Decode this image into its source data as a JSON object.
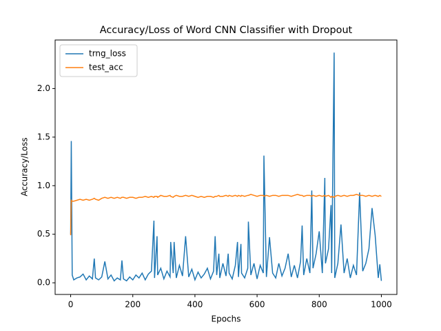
{
  "chart_data": {
    "type": "line",
    "title": "Accuracy/Loss of Word CNN Classifier with Dropout",
    "x_label": "Epochs",
    "y_label": "Accuracy/Loss",
    "x": [
      0,
      2,
      5,
      10,
      20,
      30,
      40,
      50,
      60,
      70,
      76,
      80,
      90,
      100,
      110,
      120,
      130,
      140,
      150,
      160,
      165,
      170,
      180,
      190,
      200,
      210,
      220,
      230,
      240,
      250,
      260,
      268,
      270,
      278,
      280,
      290,
      300,
      310,
      320,
      322,
      330,
      333,
      340,
      350,
      360,
      370,
      380,
      390,
      400,
      410,
      420,
      430,
      440,
      450,
      460,
      465,
      470,
      477,
      480,
      490,
      500,
      507,
      510,
      520,
      530,
      537,
      540,
      548,
      550,
      560,
      570,
      572,
      580,
      590,
      600,
      610,
      620,
      622,
      630,
      640,
      650,
      660,
      670,
      680,
      690,
      700,
      710,
      720,
      730,
      740,
      745,
      750,
      760,
      770,
      776,
      780,
      790,
      800,
      810,
      818,
      820,
      830,
      838,
      840,
      848,
      850,
      860,
      870,
      880,
      890,
      900,
      910,
      920,
      930,
      940,
      950,
      960,
      970,
      980,
      990,
      995,
      1000
    ],
    "series": [
      {
        "name": "trng_loss",
        "color": "#1f77b4",
        "values": [
          0.5,
          1.46,
          0.08,
          0.03,
          0.05,
          0.06,
          0.09,
          0.03,
          0.07,
          0.04,
          0.25,
          0.05,
          0.03,
          0.06,
          0.22,
          0.04,
          0.08,
          0.02,
          0.05,
          0.03,
          0.23,
          0.04,
          0.02,
          0.06,
          0.03,
          0.08,
          0.05,
          0.1,
          0.03,
          0.09,
          0.12,
          0.64,
          0.05,
          0.48,
          0.08,
          0.15,
          0.04,
          0.12,
          0.06,
          0.42,
          0.1,
          0.42,
          0.05,
          0.18,
          0.07,
          0.48,
          0.06,
          0.14,
          0.03,
          0.11,
          0.05,
          0.09,
          0.15,
          0.04,
          0.12,
          0.48,
          0.08,
          0.3,
          0.05,
          0.2,
          0.07,
          0.3,
          0.1,
          0.04,
          0.18,
          0.42,
          0.06,
          0.4,
          0.1,
          0.05,
          0.15,
          0.63,
          0.08,
          0.2,
          0.04,
          0.18,
          0.1,
          1.31,
          0.06,
          0.47,
          0.1,
          0.05,
          0.2,
          0.07,
          0.15,
          0.3,
          0.06,
          0.18,
          0.05,
          0.22,
          0.59,
          0.08,
          0.25,
          0.1,
          0.95,
          0.15,
          0.3,
          0.53,
          0.1,
          1.08,
          0.2,
          0.35,
          0.8,
          0.1,
          2.37,
          0.05,
          0.2,
          0.6,
          0.1,
          0.25,
          0.05,
          0.18,
          0.08,
          0.93,
          0.12,
          0.2,
          0.35,
          0.77,
          0.49,
          0.05,
          0.19,
          0.02
        ]
      },
      {
        "name": "test_acc",
        "color": "#ff7f0e",
        "values": [
          0.49,
          0.85,
          0.84,
          0.84,
          0.85,
          0.86,
          0.85,
          0.86,
          0.85,
          0.86,
          0.87,
          0.86,
          0.85,
          0.87,
          0.88,
          0.87,
          0.88,
          0.87,
          0.88,
          0.87,
          0.88,
          0.88,
          0.87,
          0.88,
          0.88,
          0.87,
          0.88,
          0.88,
          0.89,
          0.88,
          0.89,
          0.88,
          0.89,
          0.89,
          0.88,
          0.9,
          0.89,
          0.89,
          0.9,
          0.89,
          0.88,
          0.89,
          0.9,
          0.89,
          0.89,
          0.9,
          0.89,
          0.9,
          0.89,
          0.88,
          0.89,
          0.88,
          0.89,
          0.89,
          0.88,
          0.89,
          0.89,
          0.9,
          0.89,
          0.89,
          0.9,
          0.89,
          0.9,
          0.89,
          0.9,
          0.89,
          0.9,
          0.89,
          0.9,
          0.89,
          0.9,
          0.9,
          0.91,
          0.9,
          0.89,
          0.9,
          0.9,
          0.89,
          0.9,
          0.89,
          0.9,
          0.9,
          0.89,
          0.9,
          0.9,
          0.9,
          0.89,
          0.9,
          0.91,
          0.9,
          0.9,
          0.89,
          0.9,
          0.9,
          0.89,
          0.9,
          0.89,
          0.9,
          0.89,
          0.9,
          0.89,
          0.9,
          0.88,
          0.89,
          0.88,
          0.89,
          0.9,
          0.89,
          0.9,
          0.89,
          0.9,
          0.9,
          0.91,
          0.9,
          0.9,
          0.89,
          0.9,
          0.89,
          0.9,
          0.89,
          0.9,
          0.89
        ]
      }
    ],
    "xlim": [
      -50,
      1050
    ],
    "xticks": [
      0,
      200,
      400,
      600,
      800,
      1000
    ],
    "ylim": [
      -0.12,
      2.5
    ],
    "yticks": [
      {
        "value": 0,
        "label": "0.0"
      },
      {
        "value": 0.5,
        "label": "0.5"
      },
      {
        "value": 1,
        "label": "1.0"
      },
      {
        "value": 1.5,
        "label": "1.5"
      },
      {
        "value": 2,
        "label": "2.0"
      }
    ],
    "legend": "upper left",
    "grid": false
  }
}
